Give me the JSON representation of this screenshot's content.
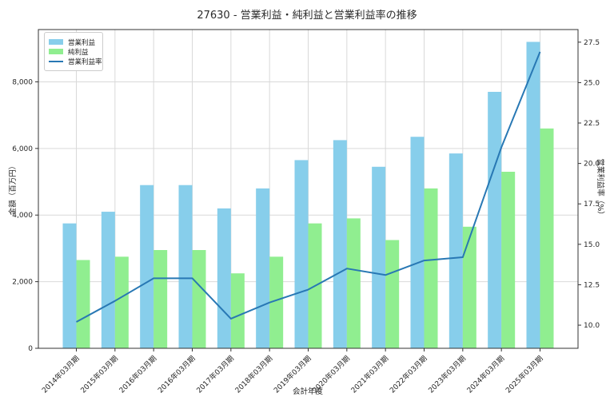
{
  "title": "27630 - 営業利益・純利益と営業利益率の推移",
  "chart_data": {
    "type": "bar",
    "subtype": "grouped-bars-with-line",
    "title": "27630 - 営業利益・純利益と営業利益率の推移",
    "xlabel": "会計年度",
    "ylabel_left": "金額（百万円）",
    "ylabel_right": "営業利益率（%）",
    "categories": [
      "2014年03月期",
      "2015年03月期",
      "2016年03月期",
      "2016年03月期",
      "2017年03月期",
      "2018年03月期",
      "2019年03月期",
      "2020年03月期",
      "2021年03月期",
      "2022年03月期",
      "2023年03月期",
      "2024年03月期",
      "2025年03月期"
    ],
    "series": [
      {
        "name": "営業利益",
        "key": "operating-profit",
        "type": "bar",
        "axis": "left",
        "color": "#87CEEB",
        "values": [
          3750,
          4100,
          4900,
          4900,
          4200,
          4800,
          5650,
          6250,
          5450,
          6350,
          5850,
          7700,
          9200
        ]
      },
      {
        "name": "純利益",
        "key": "net-profit",
        "type": "bar",
        "axis": "left",
        "color": "#90EE90",
        "values": [
          2650,
          2750,
          2950,
          2950,
          2250,
          2750,
          3750,
          3900,
          3250,
          4800,
          3650,
          5300,
          6600
        ]
      },
      {
        "name": "営業利益率",
        "key": "operating-margin",
        "type": "line",
        "axis": "right",
        "color": "#2878b4",
        "values": [
          10.2,
          11.5,
          12.9,
          12.9,
          10.4,
          11.4,
          12.2,
          13.5,
          13.1,
          14.0,
          14.2,
          21.0,
          26.9
        ]
      }
    ],
    "ylim_left": [
      0,
      9570
    ],
    "ylim_right": [
      8.57,
      28.28
    ],
    "yticks_left_values": [
      0,
      2000,
      4000,
      6000,
      8000
    ],
    "yticks_left_labels": [
      "0",
      "2,000",
      "4,000",
      "6,000",
      "8,000"
    ],
    "yticks_right_values": [
      10.0,
      12.5,
      15.0,
      17.5,
      20.0,
      22.5,
      25.0,
      27.5
    ],
    "grid": true,
    "legend_position": "upper-left",
    "colors": {
      "grid": "#d9d9d9",
      "spine": "#333333",
      "text": "#262626",
      "background": "#ffffff"
    }
  }
}
